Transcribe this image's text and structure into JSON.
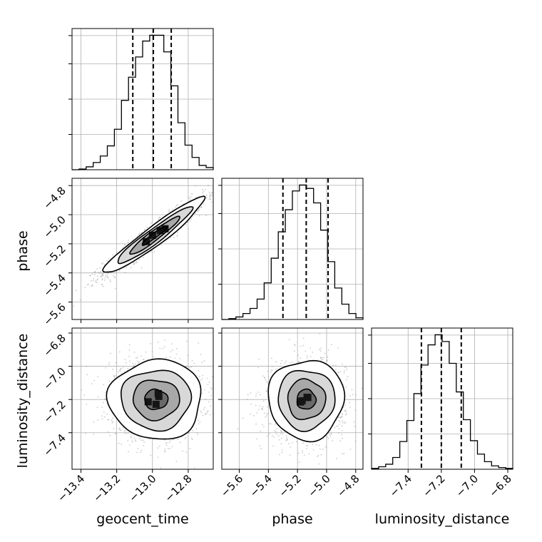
{
  "chart_data": {
    "type": "corner",
    "parameters": [
      "geocent_time",
      "phase",
      "luminosity_distance"
    ],
    "axis_labels": {
      "x": [
        "geocent_time",
        "phase",
        "luminosity_distance"
      ],
      "y": [
        "",
        "phase",
        "luminosity_distance"
      ]
    },
    "ranges": {
      "geocent_time": [
        -13.45,
        -12.66
      ],
      "phase": [
        -5.72,
        -4.75
      ],
      "luminosity_distance": [
        -7.62,
        -6.77
      ]
    },
    "ticks": {
      "geocent_time": [
        -13.4,
        -13.2,
        -13.0,
        -12.8
      ],
      "phase": [
        -5.6,
        -5.4,
        -5.2,
        -5.0,
        -4.8
      ],
      "luminosity_distance": [
        -7.4,
        -7.2,
        -7.0,
        -6.8
      ]
    },
    "tick_labels": {
      "geocent_time": [
        "−13.4",
        "−13.2",
        "−13.0",
        "−12.8"
      ],
      "phase": [
        "−5.6",
        "−5.4",
        "−5.2",
        "−5.0",
        "−4.8"
      ],
      "luminosity_distance": [
        "−7.4",
        "−7.2",
        "−7.0",
        "−6.8"
      ]
    },
    "y_ticks_rows": {
      "phase": [
        -5.6,
        -5.4,
        -5.2,
        -5.0,
        -4.8
      ],
      "luminosity_distance": [
        -7.4,
        -7.2,
        -7.0,
        -6.8
      ]
    },
    "quantiles": {
      "geocent_time": [
        -13.11,
        -12.995,
        -12.895
      ],
      "phase": [
        -5.3,
        -5.14,
        -4.99
      ],
      "luminosity_distance": [
        -7.32,
        -7.2,
        -7.08
      ]
    },
    "histograms": {
      "geocent_time": {
        "edges": [
          -13.45,
          -13.4105,
          -13.371,
          -13.3315,
          -13.292,
          -13.2525,
          -13.213,
          -13.1735,
          -13.134,
          -13.0945,
          -13.055,
          -13.0155,
          -12.976,
          -12.9365,
          -12.897,
          -12.8575,
          -12.818,
          -12.7785,
          -12.739,
          -12.6995,
          -12.66
        ],
        "counts": [
          0,
          1,
          4,
          10,
          19,
          33,
          56,
          96,
          128,
          156,
          178,
          186,
          186,
          163,
          116,
          65,
          34,
          17,
          6,
          3
        ]
      },
      "phase": {
        "edges": [
          -5.72,
          -5.6715,
          -5.623,
          -5.5745,
          -5.526,
          -5.4775,
          -5.429,
          -5.3805,
          -5.332,
          -5.2835,
          -5.235,
          -5.1865,
          -5.138,
          -5.0895,
          -5.041,
          -4.9925,
          -4.944,
          -4.8955,
          -4.847,
          -4.7985,
          -4.75
        ],
        "counts": [
          0,
          1,
          3,
          7,
          13,
          24,
          43,
          72,
          103,
          129,
          151,
          158,
          154,
          137,
          105,
          68,
          37,
          18,
          7,
          2
        ]
      },
      "luminosity_distance": {
        "edges": [
          -7.62,
          -7.5775,
          -7.535,
          -7.4925,
          -7.45,
          -7.4075,
          -7.365,
          -7.3225,
          -7.28,
          -7.2375,
          -7.195,
          -7.1525,
          -7.11,
          -7.0675,
          -7.025,
          -6.9825,
          -6.94,
          -6.8975,
          -6.855,
          -6.8125,
          -6.77
        ],
        "counts": [
          1,
          3,
          6,
          14,
          33,
          58,
          90,
          124,
          148,
          160,
          152,
          126,
          92,
          59,
          34,
          18,
          9,
          4,
          2,
          1
        ]
      }
    },
    "pairs": [
      {
        "x": "geocent_time",
        "y": "phase",
        "mean": [
          -12.99,
          -5.145
        ],
        "sd": [
          0.14,
          0.13
        ],
        "correlation": 0.95,
        "contour_levels_sigma": [
          0.5,
          1.0,
          1.5,
          2.0
        ]
      },
      {
        "x": "geocent_time",
        "y": "luminosity_distance",
        "mean": [
          -12.98,
          -7.2
        ],
        "sd": [
          0.13,
          0.12
        ],
        "correlation": 0.0,
        "contour_levels_sigma": [
          0.5,
          1.0,
          1.5,
          2.0
        ]
      },
      {
        "x": "phase",
        "y": "luminosity_distance",
        "mean": [
          -5.14,
          -7.2
        ],
        "sd": [
          0.13,
          0.12
        ],
        "correlation": 0.0,
        "contour_levels_sigma": [
          0.5,
          1.0,
          1.5,
          2.0
        ]
      }
    ],
    "grid": true,
    "colors": {
      "line": "#000000",
      "grid": "#b0b0b0",
      "frame": "#000000"
    }
  }
}
